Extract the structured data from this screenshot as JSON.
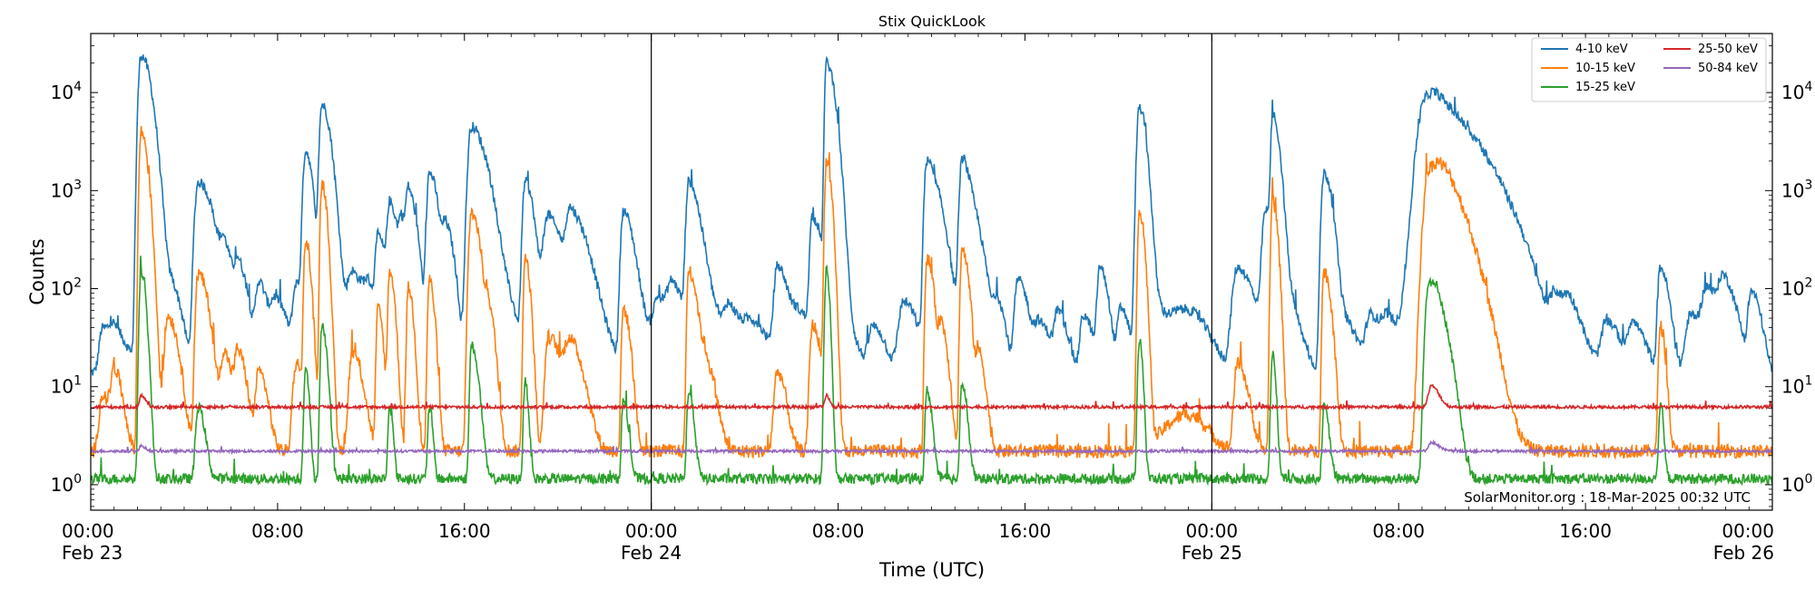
{
  "chart_data": {
    "type": "line",
    "title": "Stix QuickLook",
    "xlabel": "Time (UTC)",
    "ylabel": "Counts",
    "yscale": "log",
    "ylim": [
      0.55,
      40000
    ],
    "xlim_hours": [
      0,
      72
    ],
    "grid": false,
    "legend_position": "top-right",
    "credit": "SolarMonitor.org : 18-Mar-2025 00:32 UTC",
    "x_ticks": [
      {
        "hour": 0,
        "time": "00:00",
        "date": "Feb 23"
      },
      {
        "hour": 8,
        "time": "08:00",
        "date": ""
      },
      {
        "hour": 16,
        "time": "16:00",
        "date": ""
      },
      {
        "hour": 24,
        "time": "00:00",
        "date": "Feb 24"
      },
      {
        "hour": 32,
        "time": "08:00",
        "date": ""
      },
      {
        "hour": 40,
        "time": "16:00",
        "date": ""
      },
      {
        "hour": 48,
        "time": "00:00",
        "date": "Feb 25"
      },
      {
        "hour": 56,
        "time": "08:00",
        "date": ""
      },
      {
        "hour": 64,
        "time": "16:00",
        "date": ""
      },
      {
        "hour": 72,
        "time": "00:00",
        "date": "Feb 26"
      }
    ],
    "y_ticks": [
      {
        "exp": 0,
        "base": "10",
        "sup": "0"
      },
      {
        "exp": 1,
        "base": "10",
        "sup": "1"
      },
      {
        "exp": 2,
        "base": "10",
        "sup": "2"
      },
      {
        "exp": 3,
        "base": "10",
        "sup": "3"
      },
      {
        "exp": 4,
        "base": "10",
        "sup": "4"
      }
    ],
    "day_dividers_hours": [
      24,
      48
    ],
    "series": [
      {
        "name": "4-10 keV",
        "color": "#1f77b4",
        "baseline": 14,
        "noise": 0.12,
        "flares": [
          [
            0.5,
            25,
            0.2,
            0.6
          ],
          [
            1.0,
            20,
            0.3,
            0.8
          ],
          [
            2.15,
            24000,
            0.15,
            0.6
          ],
          [
            3.3,
            60,
            0.3,
            0.8
          ],
          [
            3.5,
            40,
            0.2,
            0.5
          ],
          [
            4.6,
            1200,
            0.2,
            0.9
          ],
          [
            5.7,
            200,
            0.2,
            0.6
          ],
          [
            6.3,
            150,
            0.2,
            0.6
          ],
          [
            7.2,
            100,
            0.2,
            0.5
          ],
          [
            7.9,
            60,
            0.3,
            0.7
          ],
          [
            8.8,
            90,
            0.2,
            0.6
          ],
          [
            9.2,
            2500,
            0.15,
            0.4
          ],
          [
            9.9,
            7500,
            0.15,
            0.5
          ],
          [
            10.5,
            60,
            0.3,
            0.8
          ],
          [
            11.2,
            120,
            0.3,
            0.9
          ],
          [
            11.9,
            60,
            0.3,
            0.6
          ],
          [
            12.3,
            300,
            0.15,
            0.5
          ],
          [
            12.8,
            700,
            0.15,
            0.5
          ],
          [
            13.3,
            400,
            0.15,
            0.4
          ],
          [
            13.6,
            900,
            0.15,
            0.5
          ],
          [
            14.5,
            1500,
            0.15,
            0.5
          ],
          [
            15.2,
            400,
            0.2,
            0.5
          ],
          [
            16.3,
            4500,
            0.2,
            0.8
          ],
          [
            17.0,
            300,
            0.2,
            0.6
          ],
          [
            17.6,
            80,
            0.3,
            0.8
          ],
          [
            18.6,
            1200,
            0.15,
            0.5
          ],
          [
            19.4,
            200,
            0.2,
            0.5
          ],
          [
            19.6,
            400,
            0.2,
            1.2
          ],
          [
            20.5,
            500,
            0.2,
            1.0
          ],
          [
            21.3,
            30,
            0.5,
            1.5
          ],
          [
            22.8,
            600,
            0.15,
            0.6
          ],
          [
            23.6,
            30,
            0.3,
            0.8
          ],
          [
            24.3,
            60,
            0.3,
            0.8
          ],
          [
            24.9,
            80,
            0.3,
            0.8
          ],
          [
            25.6,
            1200,
            0.15,
            0.6
          ],
          [
            26.3,
            80,
            0.3,
            0.8
          ],
          [
            27.3,
            50,
            0.3,
            0.8
          ],
          [
            28.3,
            30,
            0.5,
            1.0
          ],
          [
            29.4,
            150,
            0.2,
            0.6
          ],
          [
            30.3,
            40,
            0.5,
            1.0
          ],
          [
            30.9,
            500,
            0.15,
            0.6
          ],
          [
            31.5,
            20000,
            0.1,
            0.5
          ],
          [
            32.2,
            30,
            0.5,
            1.0
          ],
          [
            33.5,
            30,
            0.3,
            0.8
          ],
          [
            34.8,
            60,
            0.3,
            0.8
          ],
          [
            35.8,
            2000,
            0.15,
            0.6
          ],
          [
            36.4,
            300,
            0.2,
            0.6
          ],
          [
            37.3,
            2000,
            0.15,
            0.6
          ],
          [
            38.0,
            200,
            0.2,
            0.6
          ],
          [
            38.8,
            60,
            0.2,
            0.5
          ],
          [
            39.7,
            110,
            0.2,
            0.6
          ],
          [
            40.6,
            30,
            0.3,
            0.8
          ],
          [
            41.4,
            40,
            0.2,
            0.6
          ],
          [
            42.5,
            40,
            0.2,
            0.6
          ],
          [
            43.2,
            150,
            0.15,
            0.5
          ],
          [
            44.1,
            50,
            0.2,
            0.5
          ],
          [
            44.9,
            7000,
            0.15,
            0.4
          ],
          [
            45.4,
            60,
            0.2,
            0.5
          ],
          [
            45.9,
            15,
            1.5,
            1.5
          ],
          [
            47.0,
            35,
            1.5,
            1.2
          ],
          [
            49.1,
            150,
            0.3,
            1.0
          ],
          [
            50.3,
            600,
            0.2,
            0.8
          ],
          [
            50.6,
            5500,
            0.1,
            0.4
          ],
          [
            51.3,
            40,
            0.3,
            0.8
          ],
          [
            52.8,
            1500,
            0.15,
            0.5
          ],
          [
            53.7,
            30,
            0.3,
            0.8
          ],
          [
            54.8,
            40,
            0.3,
            0.8
          ],
          [
            55.5,
            30,
            0.3,
            0.8
          ],
          [
            57.1,
            5000,
            0.4,
            1.2
          ],
          [
            57.6,
            6000,
            0.8,
            2.6
          ],
          [
            59.2,
            30,
            0.5,
            1.2
          ],
          [
            60.3,
            30,
            0.3,
            0.8
          ],
          [
            61.1,
            35,
            0.3,
            0.8
          ],
          [
            62.7,
            60,
            0.3,
            0.8
          ],
          [
            63.3,
            40,
            0.3,
            0.8
          ],
          [
            64.9,
            30,
            0.3,
            0.8
          ],
          [
            66.0,
            30,
            0.3,
            0.8
          ],
          [
            67.2,
            150,
            0.15,
            0.5
          ],
          [
            68.5,
            40,
            0.3,
            0.8
          ],
          [
            69.2,
            80,
            0.3,
            0.8
          ],
          [
            69.9,
            100,
            0.3,
            0.8
          ],
          [
            71.1,
            80,
            0.2,
            0.6
          ]
        ]
      },
      {
        "name": "10-15 keV",
        "color": "#ff7f0e",
        "baseline": 2.2,
        "noise": 0.16,
        "flares": [
          [
            0.5,
            6,
            0.2,
            0.5
          ],
          [
            1.0,
            12,
            0.2,
            0.5
          ],
          [
            2.15,
            4000,
            0.1,
            0.4
          ],
          [
            3.3,
            50,
            0.2,
            0.6
          ],
          [
            4.6,
            140,
            0.15,
            0.6
          ],
          [
            5.7,
            20,
            0.2,
            0.5
          ],
          [
            6.3,
            20,
            0.2,
            0.5
          ],
          [
            7.2,
            12,
            0.2,
            0.5
          ],
          [
            8.8,
            15,
            0.2,
            0.5
          ],
          [
            9.2,
            300,
            0.1,
            0.3
          ],
          [
            9.9,
            1200,
            0.1,
            0.3
          ],
          [
            11.2,
            20,
            0.2,
            0.6
          ],
          [
            12.3,
            60,
            0.1,
            0.3
          ],
          [
            12.8,
            150,
            0.1,
            0.3
          ],
          [
            13.6,
            100,
            0.1,
            0.3
          ],
          [
            14.5,
            120,
            0.1,
            0.3
          ],
          [
            16.3,
            600,
            0.15,
            0.5
          ],
          [
            17.0,
            60,
            0.15,
            0.4
          ],
          [
            18.6,
            200,
            0.1,
            0.3
          ],
          [
            19.6,
            30,
            0.2,
            0.8
          ],
          [
            20.5,
            25,
            0.3,
            0.8
          ],
          [
            22.8,
            60,
            0.1,
            0.4
          ],
          [
            25.6,
            150,
            0.1,
            0.5
          ],
          [
            26.3,
            15,
            0.2,
            0.6
          ],
          [
            29.4,
            12,
            0.2,
            0.5
          ],
          [
            30.9,
            40,
            0.15,
            0.5
          ],
          [
            31.5,
            2000,
            0.1,
            0.3
          ],
          [
            35.8,
            200,
            0.1,
            0.4
          ],
          [
            36.4,
            40,
            0.15,
            0.4
          ],
          [
            37.3,
            250,
            0.1,
            0.4
          ],
          [
            38.0,
            20,
            0.15,
            0.4
          ],
          [
            44.9,
            600,
            0.1,
            0.3
          ],
          [
            47.0,
            3,
            1.5,
            1.2
          ],
          [
            49.1,
            15,
            0.2,
            0.6
          ],
          [
            50.6,
            800,
            0.1,
            0.3
          ],
          [
            52.8,
            150,
            0.1,
            0.4
          ],
          [
            57.3,
            1500,
            0.3,
            1.3
          ],
          [
            57.8,
            700,
            0.5,
            1.6
          ],
          [
            67.2,
            40,
            0.1,
            0.3
          ]
        ]
      },
      {
        "name": "15-25 keV",
        "color": "#2ca02c",
        "baseline": 1.15,
        "noise": 0.12,
        "flares": [
          [
            2.15,
            150,
            0.1,
            0.3
          ],
          [
            4.6,
            5,
            0.15,
            0.4
          ],
          [
            9.2,
            15,
            0.1,
            0.2
          ],
          [
            9.9,
            40,
            0.1,
            0.3
          ],
          [
            12.8,
            5,
            0.1,
            0.2
          ],
          [
            14.5,
            5,
            0.1,
            0.2
          ],
          [
            16.3,
            25,
            0.1,
            0.4
          ],
          [
            18.6,
            10,
            0.1,
            0.2
          ],
          [
            22.8,
            6,
            0.1,
            0.3
          ],
          [
            25.6,
            8,
            0.1,
            0.3
          ],
          [
            31.5,
            150,
            0.1,
            0.2
          ],
          [
            35.8,
            8,
            0.1,
            0.3
          ],
          [
            37.3,
            10,
            0.1,
            0.3
          ],
          [
            44.9,
            30,
            0.1,
            0.2
          ],
          [
            50.6,
            20,
            0.1,
            0.2
          ],
          [
            52.8,
            5,
            0.1,
            0.3
          ],
          [
            57.3,
            120,
            0.2,
            0.5
          ],
          [
            57.7,
            50,
            0.2,
            0.7
          ],
          [
            67.2,
            5,
            0.1,
            0.2
          ]
        ]
      },
      {
        "name": "25-50 keV",
        "color": "#d62728",
        "baseline": 6.2,
        "noise": 0.035,
        "flares": [
          [
            2.15,
            2,
            0.1,
            0.3
          ],
          [
            31.5,
            2,
            0.1,
            0.2
          ],
          [
            57.4,
            4,
            0.2,
            0.5
          ]
        ]
      },
      {
        "name": "50-84 keV",
        "color": "#9467bd",
        "baseline": 2.2,
        "noise": 0.03,
        "flares": [
          [
            2.15,
            0.3,
            0.1,
            0.3
          ],
          [
            57.4,
            0.5,
            0.2,
            0.5
          ]
        ]
      }
    ]
  }
}
